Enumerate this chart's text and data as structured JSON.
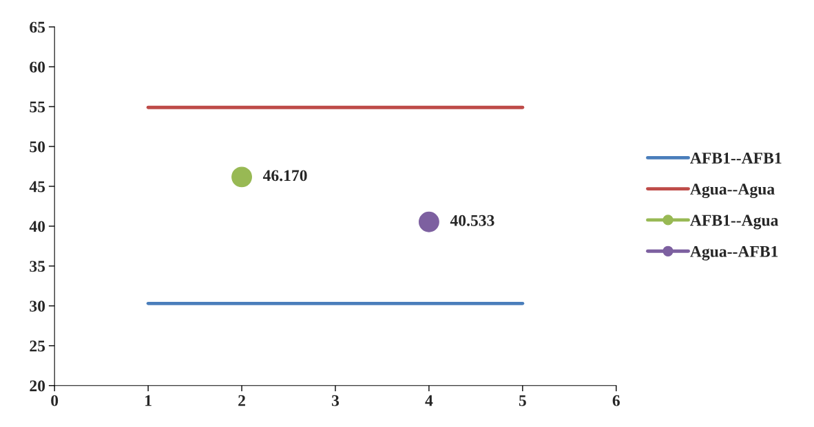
{
  "chart_data": {
    "type": "line",
    "series": [
      {
        "name": "AFB1--AFB1",
        "color": "#4a7ebb",
        "x": [
          1,
          5
        ],
        "values": [
          30.3,
          30.3
        ],
        "marker": "none"
      },
      {
        "name": "Agua--Agua",
        "color": "#be4b48",
        "x": [
          1,
          5
        ],
        "values": [
          54.9,
          54.9
        ],
        "marker": "none"
      },
      {
        "name": "AFB1--Agua",
        "type": "scatter",
        "color": "#98b954",
        "x": [
          2
        ],
        "values": [
          46.17
        ],
        "value_labels": [
          "46.170"
        ],
        "marker": "circle"
      },
      {
        "name": "Agua--AFB1",
        "type": "scatter",
        "color": "#7d60a0",
        "x": [
          4
        ],
        "values": [
          40.533
        ],
        "value_labels": [
          "40.533"
        ],
        "marker": "circle"
      }
    ],
    "xlim": [
      0,
      6
    ],
    "xticks": [
      0,
      1,
      2,
      3,
      4,
      5,
      6
    ],
    "ylim": [
      20,
      65
    ],
    "yticks": [
      20,
      25,
      30,
      35,
      40,
      45,
      50,
      55,
      60,
      65
    ],
    "grid": false,
    "legend": "right"
  }
}
